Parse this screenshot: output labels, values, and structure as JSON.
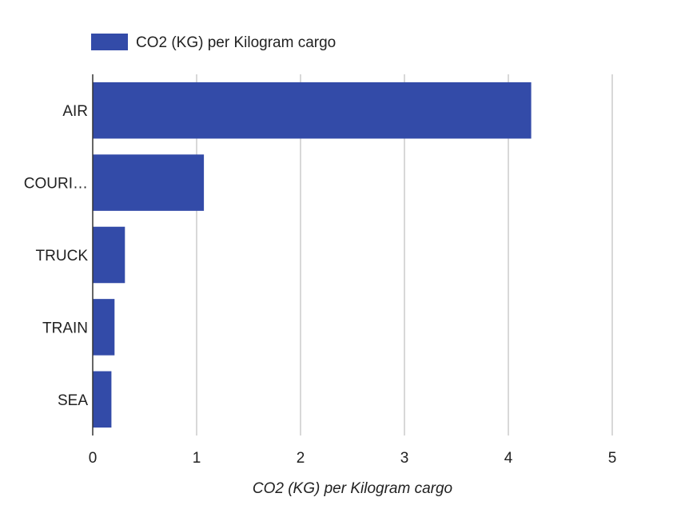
{
  "chart_data": {
    "type": "bar",
    "orientation": "horizontal",
    "categories": [
      "AIR",
      "COURI…",
      "TRUCK",
      "TRAIN",
      "SEA"
    ],
    "series": [
      {
        "name": "CO2 (KG) per Kilogram cargo",
        "color": "#334ba8",
        "values": [
          4.22,
          1.07,
          0.31,
          0.21,
          0.18
        ]
      }
    ],
    "xlabel": "CO2 (KG) per Kilogram cargo",
    "ylabel": "",
    "xlim": [
      0,
      5
    ],
    "xticks": [
      "0",
      "1",
      "2",
      "3",
      "4",
      "5"
    ],
    "grid": true,
    "legend_position": "top-left"
  }
}
